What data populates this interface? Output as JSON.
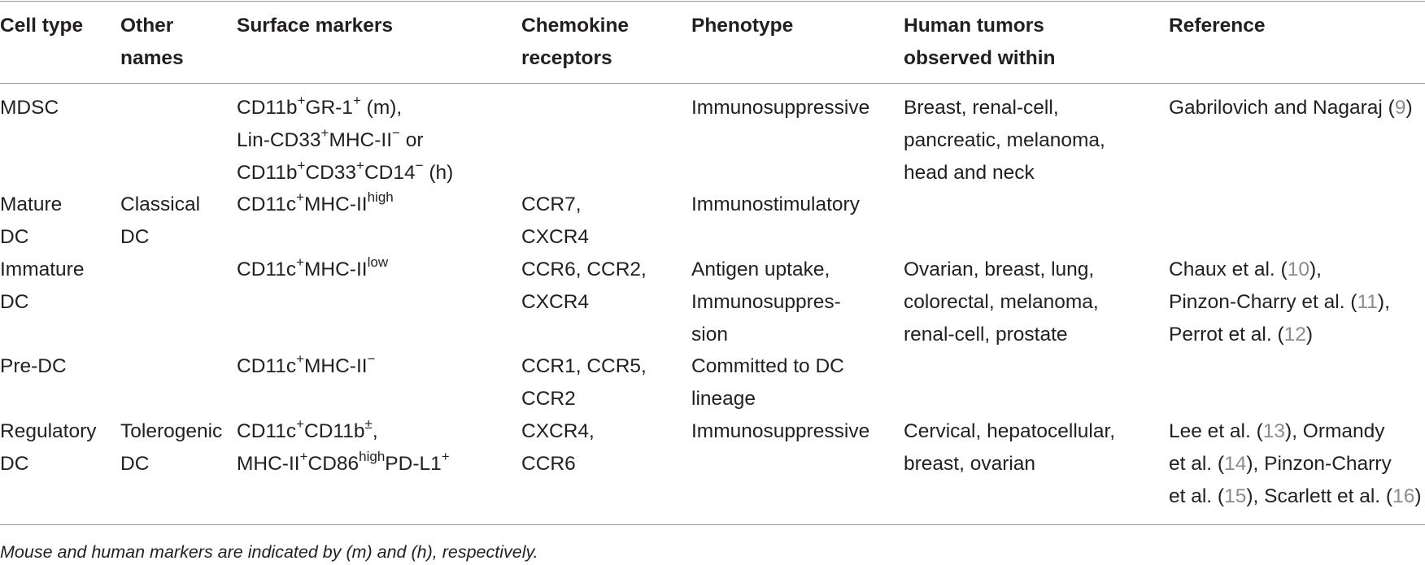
{
  "headers": {
    "cell_type": [
      "Cell type"
    ],
    "other_names": [
      "Other",
      "names"
    ],
    "surface_markers": [
      "Surface markers"
    ],
    "chemokine": [
      "Chemokine",
      "receptors"
    ],
    "phenotype": [
      "Phenotype"
    ],
    "tumors": [
      "Human tumors",
      "observed within"
    ],
    "reference": [
      "Reference"
    ]
  },
  "rows": [
    {
      "cell_type": [
        "MDSC"
      ],
      "other_names": [],
      "markers": [
        {
          "parts": [
            "CD11b",
            "+",
            "GR-1",
            "+",
            " (m),"
          ]
        },
        {
          "parts": [
            "Lin-CD33",
            "+",
            "MHC-II",
            "−",
            " or"
          ]
        },
        {
          "parts": [
            "CD11b",
            "+",
            "CD33",
            "+",
            "CD14",
            "−",
            " (h)"
          ]
        }
      ],
      "chemokine": [],
      "phenotype": [
        "Immunosuppressive"
      ],
      "tumors": [
        "Breast, renal-cell,",
        "pancreatic, melanoma,",
        "head and neck"
      ],
      "reference": [
        [
          {
            "t": "Gabrilovich and Nagaraj ("
          },
          {
            "n": "9"
          },
          {
            "t": ")"
          }
        ]
      ]
    },
    {
      "cell_type": [
        "Mature",
        "DC"
      ],
      "other_names": [
        "Classical",
        "DC"
      ],
      "markers": [
        {
          "parts": [
            "CD11c",
            "+",
            "MHC-II",
            "high"
          ]
        }
      ],
      "chemokine": [
        "CCR7,",
        "CXCR4"
      ],
      "phenotype": [
        "Immunostimulatory"
      ],
      "tumors": [],
      "reference": []
    },
    {
      "cell_type": [
        "Immature",
        "DC"
      ],
      "other_names": [],
      "markers": [
        {
          "parts": [
            "CD11c",
            "+",
            "MHC-II",
            "low"
          ]
        }
      ],
      "chemokine": [
        "CCR6, CCR2,",
        "CXCR4"
      ],
      "phenotype": [
        "Antigen uptake,",
        "Immunosuppres-",
        "sion"
      ],
      "tumors": [
        "Ovarian, breast, lung,",
        "colorectal, melanoma,",
        "renal-cell, prostate"
      ],
      "reference": [
        [
          {
            "t": "Chaux et al. ("
          },
          {
            "n": "10"
          },
          {
            "t": "),"
          }
        ],
        [
          {
            "t": "Pinzon-Charry et al. ("
          },
          {
            "n": "11"
          },
          {
            "t": "),"
          }
        ],
        [
          {
            "t": "Perrot et al. ("
          },
          {
            "n": "12"
          },
          {
            "t": ")"
          }
        ]
      ]
    },
    {
      "cell_type": [
        "Pre-DC"
      ],
      "other_names": [],
      "markers": [
        {
          "parts": [
            "CD11c",
            "+",
            "MHC-II",
            "−"
          ]
        }
      ],
      "chemokine": [
        "CCR1, CCR5,",
        "CCR2"
      ],
      "phenotype": [
        "Committed to DC",
        "lineage"
      ],
      "tumors": [],
      "reference": []
    },
    {
      "cell_type": [
        "Regulatory",
        "DC"
      ],
      "other_names": [
        "Tolerogenic",
        "DC"
      ],
      "markers": [
        {
          "parts": [
            "CD11c",
            "+",
            "CD11b",
            "±",
            ","
          ]
        },
        {
          "parts": [
            "MHC-II",
            "+",
            "CD86",
            "high",
            "PD-L1",
            "+"
          ]
        }
      ],
      "chemokine": [
        "CXCR4,",
        "CCR6"
      ],
      "phenotype": [
        "Immunosuppressive"
      ],
      "tumors": [
        "Cervical, hepatocellular,",
        "breast, ovarian"
      ],
      "reference": [
        [
          {
            "t": "Lee et al. ("
          },
          {
            "n": "13"
          },
          {
            "t": "), Ormandy"
          }
        ],
        [
          {
            "t": "et al. ("
          },
          {
            "n": "14"
          },
          {
            "t": "), Pinzon-Charry"
          }
        ],
        [
          {
            "t": "et al. ("
          },
          {
            "n": "15"
          },
          {
            "t": "), Scarlett et al. ("
          },
          {
            "n": "16"
          },
          {
            "t": ")"
          }
        ]
      ]
    }
  ],
  "footnote": "Mouse and human markers are indicated by (m) and (h), respectively.",
  "colors": {
    "text": "#231f20",
    "rule": "#9a9a9a",
    "ref_number": "#8c8c8c"
  }
}
